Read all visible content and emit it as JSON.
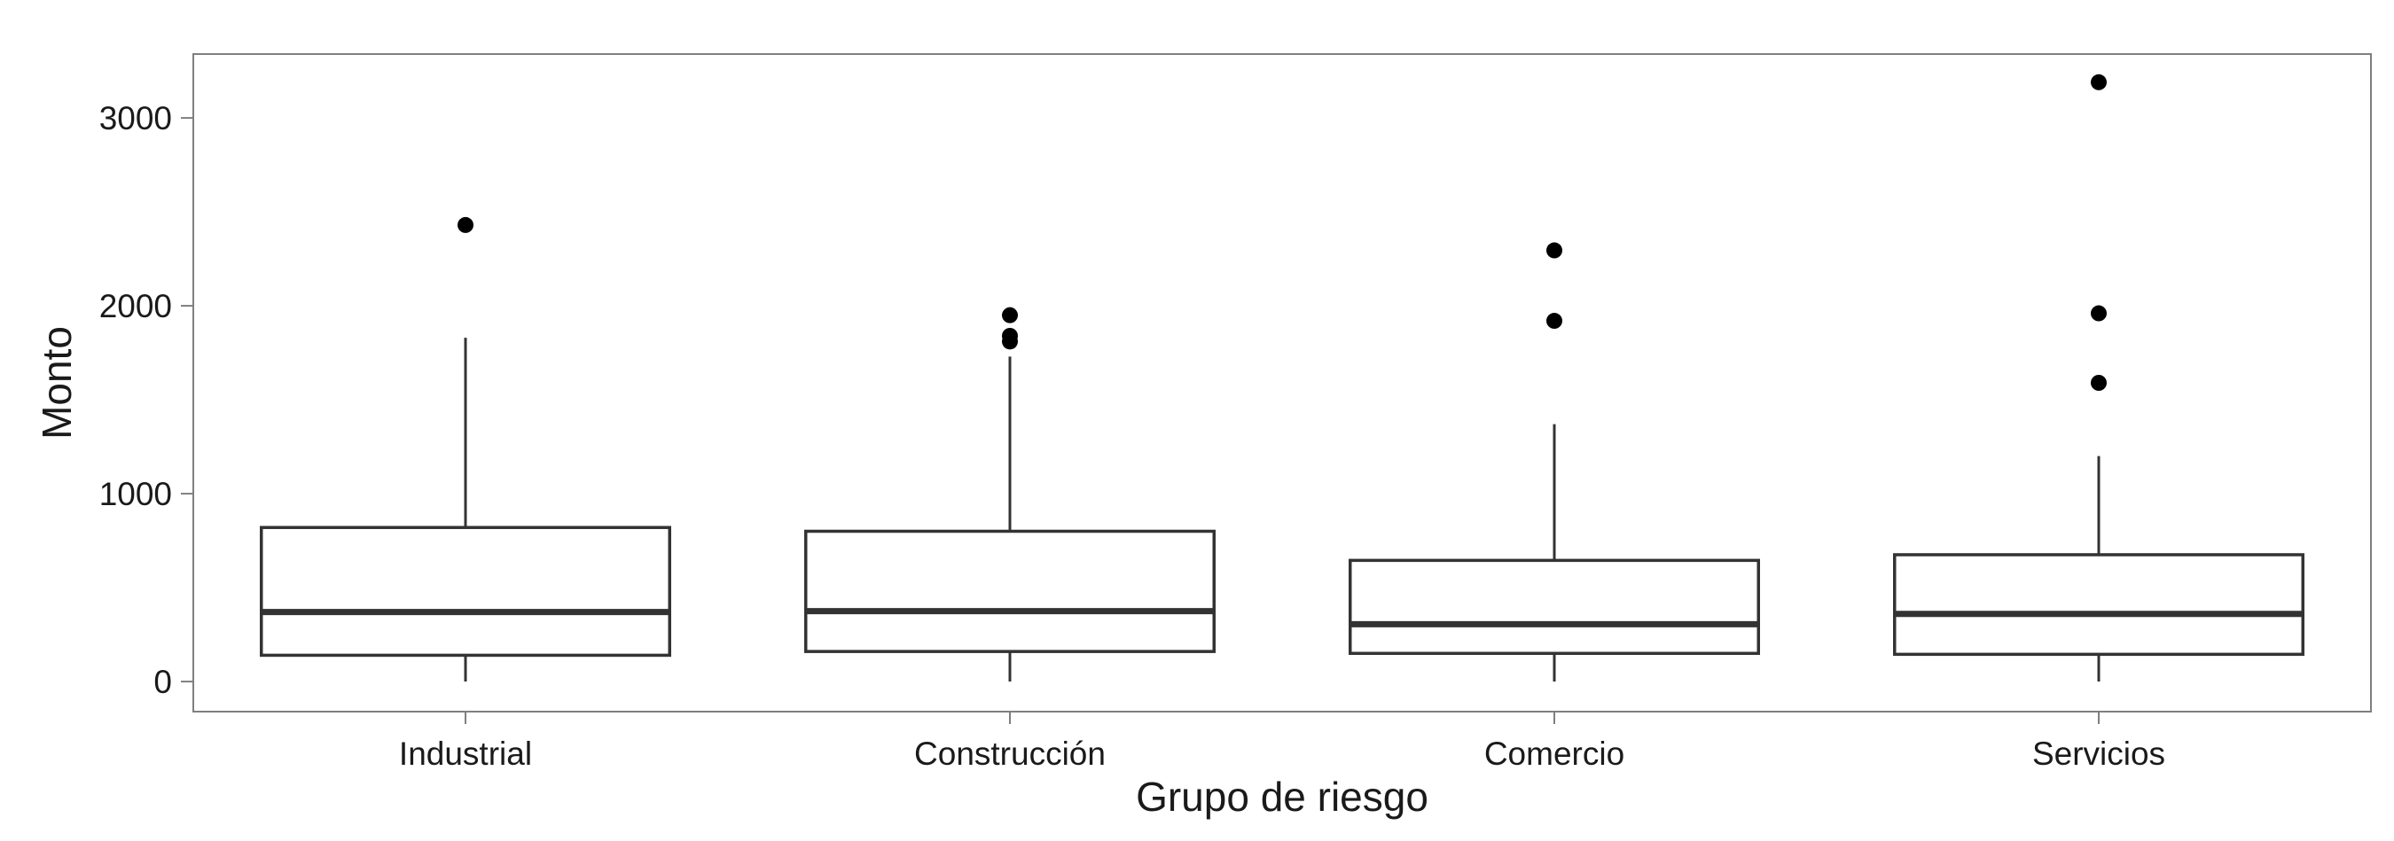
{
  "chart_data": {
    "type": "boxplot",
    "xlabel": "Grupo de riesgo",
    "ylabel": "Monto",
    "ylim": [
      -160,
      3340
    ],
    "y_ticks": [
      0,
      1000,
      2000,
      3000
    ],
    "y_tick_labels": [
      "0",
      "1000",
      "2000",
      "3000"
    ],
    "grid": false,
    "categories": [
      "Industrial",
      "Construcción",
      "Comercio",
      "Servicios"
    ],
    "boxes": [
      {
        "category": "Industrial",
        "whisker_low": 0,
        "q1": 140,
        "median": 370,
        "q3": 820,
        "whisker_high": 1830,
        "outliers": [
          2430
        ]
      },
      {
        "category": "Construcción",
        "whisker_low": 0,
        "q1": 160,
        "median": 375,
        "q3": 800,
        "whisker_high": 1730,
        "outliers": [
          1810,
          1840,
          1950
        ]
      },
      {
        "category": "Comercio",
        "whisker_low": 0,
        "q1": 150,
        "median": 305,
        "q3": 645,
        "whisker_high": 1370,
        "outliers": [
          1920,
          2295
        ]
      },
      {
        "category": "Servicios",
        "whisker_low": 0,
        "q1": 145,
        "median": 360,
        "q3": 675,
        "whisker_high": 1200,
        "outliers": [
          1590,
          1960,
          3190
        ]
      }
    ],
    "colors": {
      "box_stroke": "#333333",
      "outlier": "#000000",
      "panel_border": "#7f7f7f",
      "background": "#ffffff"
    }
  }
}
